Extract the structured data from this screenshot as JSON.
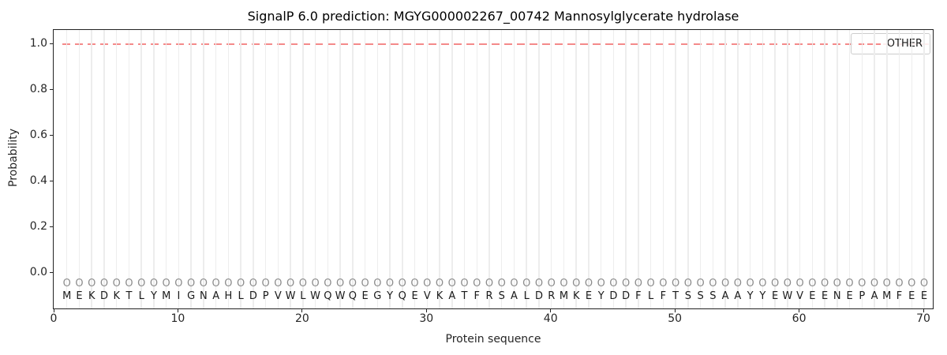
{
  "figure": {
    "title": "SignalP 6.0 prediction: MGYG000002267_00742 Mannosylglycerate hydrolase",
    "xlabel": "Protein sequence",
    "ylabel": "Probability",
    "legend": {
      "label": "OTHER"
    }
  },
  "colors": {
    "other_line": "#f48a8a",
    "gridline": "#ededed",
    "sequence_letter": "#1a1a1a",
    "prediction_letter": "#8c8c8c",
    "spine": "#222222"
  },
  "chart_data": {
    "type": "line",
    "title": "SignalP 6.0 prediction: MGYG000002267_00742 Mannosylglycerate hydrolase",
    "xlabel": "Protein sequence",
    "ylabel": "Probability",
    "xlim": [
      0,
      71
    ],
    "ylim": [
      -0.16,
      1.06
    ],
    "x_ticks": [
      0,
      10,
      20,
      30,
      40,
      50,
      60,
      70
    ],
    "y_ticks": [
      0.0,
      0.2,
      0.4,
      0.6,
      0.8,
      1.0
    ],
    "grid": "vertical gridline at every residue position 1-70",
    "legend_position": "upper right",
    "series": [
      {
        "name": "OTHER",
        "style": "dashed",
        "color": "#f48a8a",
        "x_start": 1,
        "x_end": 70,
        "x": [
          1,
          2,
          3,
          4,
          5,
          6,
          7,
          8,
          9,
          10,
          11,
          12,
          13,
          14,
          15,
          16,
          17,
          18,
          19,
          20,
          21,
          22,
          23,
          24,
          25,
          26,
          27,
          28,
          29,
          30,
          31,
          32,
          33,
          34,
          35,
          36,
          37,
          38,
          39,
          40,
          41,
          42,
          43,
          44,
          45,
          46,
          47,
          48,
          49,
          50,
          51,
          52,
          53,
          54,
          55,
          56,
          57,
          58,
          59,
          60,
          61,
          62,
          63,
          64,
          65,
          66,
          67,
          68,
          69,
          70
        ],
        "values": [
          1.0,
          1.0,
          1.0,
          1.0,
          1.0,
          1.0,
          1.0,
          1.0,
          1.0,
          1.0,
          1.0,
          1.0,
          1.0,
          1.0,
          1.0,
          1.0,
          1.0,
          1.0,
          1.0,
          1.0,
          1.0,
          1.0,
          1.0,
          1.0,
          1.0,
          1.0,
          1.0,
          1.0,
          1.0,
          1.0,
          1.0,
          1.0,
          1.0,
          1.0,
          1.0,
          1.0,
          1.0,
          1.0,
          1.0,
          1.0,
          1.0,
          1.0,
          1.0,
          1.0,
          1.0,
          1.0,
          1.0,
          1.0,
          1.0,
          1.0,
          1.0,
          1.0,
          1.0,
          1.0,
          1.0,
          1.0,
          1.0,
          1.0,
          1.0,
          1.0,
          1.0,
          1.0,
          1.0,
          1.0,
          1.0,
          1.0,
          1.0,
          1.0,
          1.0,
          1.0
        ]
      }
    ],
    "sequence": "MEKDKTLYMIGNAHLDPVWLWQWQEGYQEVKATFRSALDRMKEYDDFLFTSSSAAYYEWVEENEPAMFEE",
    "predicted_labels": "OOOOOOOOOOOOOOOOOOOOOOOOOOOOOOOOOOOOOOOOOOOOOOOOOOOOOOOOOOOOOOOOOOOOOO"
  }
}
